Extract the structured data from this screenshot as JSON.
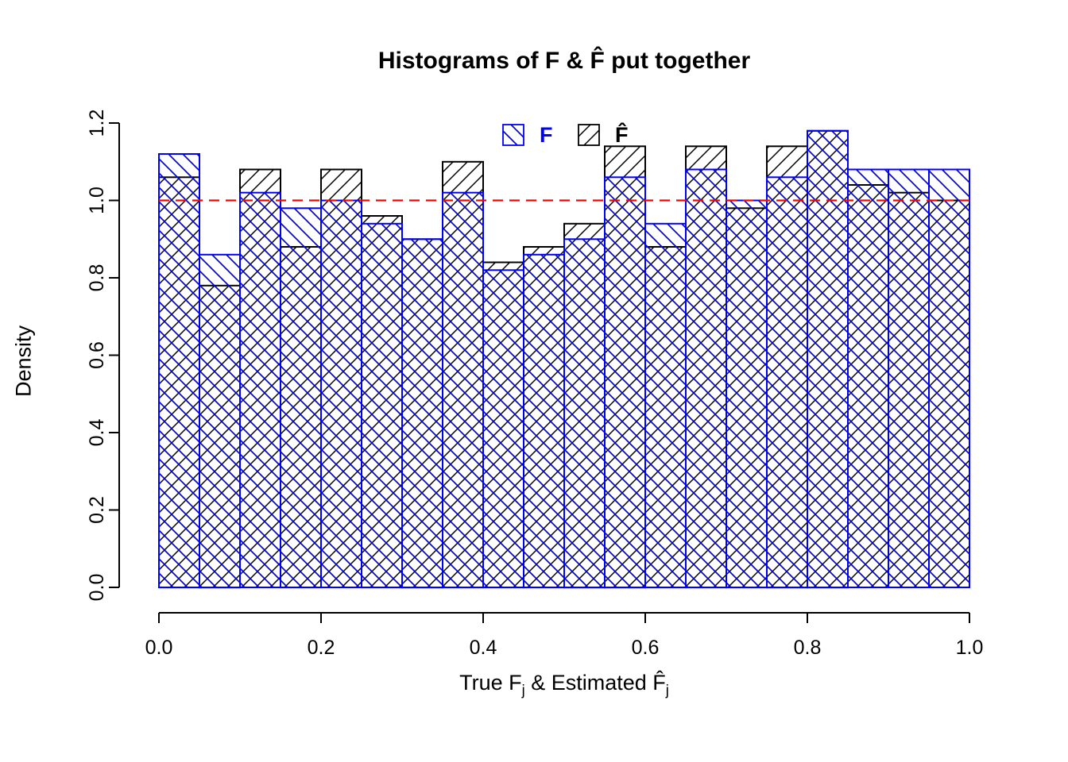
{
  "chart_data": {
    "type": "bar",
    "subtype": "overlaid-histograms",
    "title": "Histograms of F & F̂ put together",
    "ylabel": "Density",
    "xlabel_parts": [
      "True F",
      "j",
      " & Estimated ",
      "F̂",
      "j"
    ],
    "xlim": [
      0.0,
      1.0
    ],
    "ylim": [
      0.0,
      1.2
    ],
    "x_start": 0.0,
    "bin_width": 0.05,
    "x_ticks": [
      0.0,
      0.2,
      0.4,
      0.6,
      0.8,
      1.0
    ],
    "x_tick_labels": [
      "0.0",
      "0.2",
      "0.4",
      "0.6",
      "0.8",
      "1.0"
    ],
    "y_ticks": [
      0.0,
      0.2,
      0.4,
      0.6,
      0.8,
      1.0,
      1.2
    ],
    "y_tick_labels": [
      "0.0",
      "0.2",
      "0.4",
      "0.6",
      "0.8",
      "1.0",
      "1.2"
    ],
    "grid": false,
    "reference_line": {
      "y": 1.0,
      "color": "#FF0000",
      "style": "dashed"
    },
    "series": [
      {
        "name": "F-hat",
        "label": "F̂",
        "color": "#000000",
        "hatch": "forward",
        "values": [
          1.06,
          0.78,
          1.08,
          0.88,
          1.08,
          0.96,
          0.9,
          1.1,
          0.84,
          0.88,
          0.94,
          1.14,
          0.88,
          1.14,
          0.98,
          1.14,
          1.18,
          1.04,
          1.02,
          1.0
        ]
      },
      {
        "name": "F",
        "label": "F",
        "color": "#0000FF",
        "hatch": "backward",
        "values": [
          1.12,
          0.86,
          1.02,
          0.98,
          1.0,
          0.94,
          0.9,
          1.02,
          0.82,
          0.86,
          0.9,
          1.06,
          0.94,
          1.08,
          1.0,
          1.06,
          1.18,
          1.08,
          1.08,
          1.08
        ]
      }
    ],
    "legend": {
      "position": "top-center",
      "items": [
        {
          "label": "F",
          "color": "#0000FF",
          "hatch": "backward"
        },
        {
          "label": "F̂",
          "color": "#000000",
          "hatch": "forward"
        }
      ]
    }
  }
}
